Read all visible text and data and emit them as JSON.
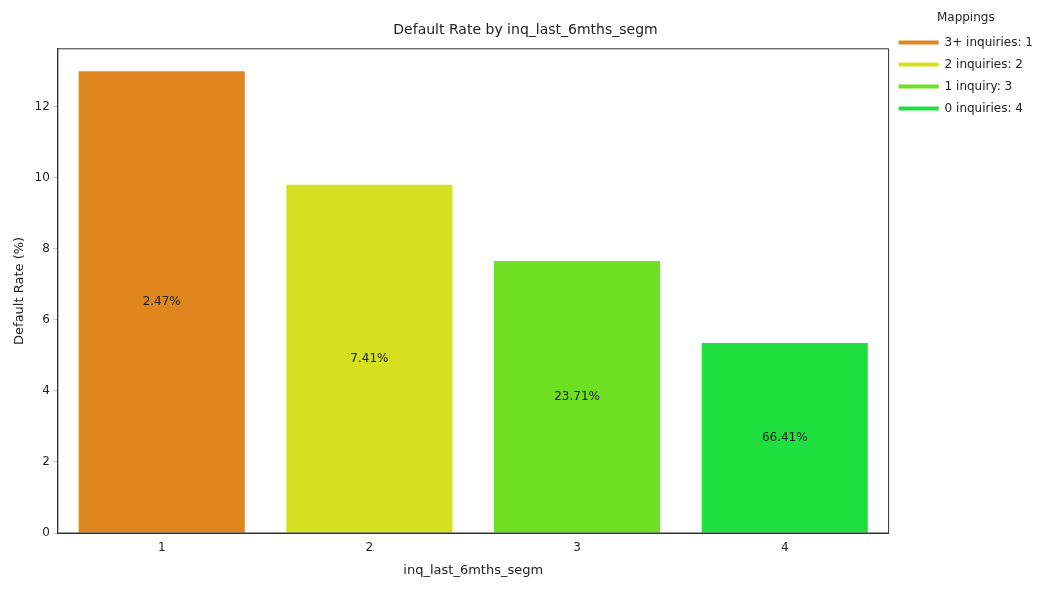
{
  "chart_data": {
    "type": "bar",
    "title": "Default Rate by inq_last_6mths_segm",
    "xlabel": "inq_last_6mths_segm",
    "ylabel": "Default Rate (%)",
    "legend_title": "Mappings",
    "categories": [
      "1",
      "2",
      "3",
      "4"
    ],
    "series": [
      {
        "name": "3+ inquiries: 1",
        "color": "#e0861f",
        "values": [
          13.0,
          null,
          null,
          null
        ]
      },
      {
        "name": "2 inquiries: 2",
        "color": "#d5e020",
        "values": [
          null,
          9.8,
          null,
          null
        ]
      },
      {
        "name": "1 inquiry: 3",
        "color": "#6ee021",
        "values": [
          null,
          null,
          7.66,
          null
        ]
      },
      {
        "name": "0 inquiries: 4",
        "color": "#20e040",
        "values": [
          null,
          null,
          null,
          5.35
        ]
      }
    ],
    "annotations": [
      "2.47%",
      "7.41%",
      "23.71%",
      "66.41%"
    ],
    "ylim": [
      0,
      13.63
    ],
    "yticks": [
      0,
      2,
      4,
      6,
      8,
      10,
      12
    ],
    "grid": false,
    "legend": "top right"
  }
}
